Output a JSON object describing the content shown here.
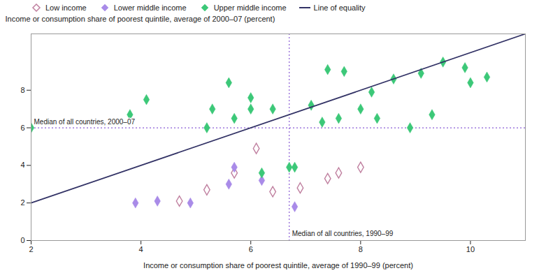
{
  "chart_data": {
    "type": "scatter",
    "xlabel": "Income or consumption share of poorest quintile, average of 1990–99 (percent)",
    "ylabel": "Income or consumption share of poorest quintile, average of 2000–07 (percent)",
    "xlim": [
      2,
      11
    ],
    "xticks": [
      2,
      4,
      6,
      8,
      10
    ],
    "ylim": [
      0,
      11
    ],
    "yticks": [
      0,
      2,
      4,
      6,
      8
    ],
    "grid": false,
    "legend": "top",
    "series": [
      {
        "name": "Low income",
        "color": "#c080a0",
        "marker": "diamond-open",
        "x": [
          4.7,
          5.2,
          5.7,
          6.4,
          6.9,
          7.4,
          7.6,
          8.0,
          6.1
        ],
        "values": [
          2.1,
          2.7,
          3.6,
          2.6,
          2.8,
          3.3,
          3.6,
          3.9,
          4.9
        ]
      },
      {
        "name": "Lower middle income",
        "color": "#a98be8",
        "marker": "diamond",
        "x": [
          3.9,
          4.3,
          4.9,
          5.6,
          5.7,
          6.2,
          6.8
        ],
        "values": [
          2.0,
          2.1,
          2.0,
          3.0,
          3.9,
          3.2,
          1.8
        ]
      },
      {
        "name": "Upper middle income",
        "color": "#3cc878",
        "marker": "diamond",
        "x": [
          2.0,
          3.8,
          4.1,
          5.2,
          5.3,
          5.6,
          6.0,
          6.0,
          6.4,
          7.1,
          7.3,
          7.4,
          7.7,
          8.0,
          8.3,
          8.9,
          9.3,
          9.5,
          10.0,
          10.3,
          9.1,
          6.7,
          5.7,
          6.2,
          6.8,
          7.6,
          8.2,
          8.6,
          9.9
        ],
        "values": [
          6.0,
          6.7,
          7.5,
          6.0,
          7.0,
          8.4,
          7.0,
          7.6,
          7.0,
          7.2,
          6.3,
          9.1,
          9.0,
          7.0,
          6.5,
          6.0,
          6.7,
          9.5,
          8.4,
          8.7,
          8.9,
          3.9,
          6.5,
          3.6,
          3.9,
          6.5,
          7.9,
          8.6,
          9.2
        ]
      },
      {
        "name": "Line of equality",
        "type": "line",
        "color": "#333366",
        "line_style": "solid",
        "x": [
          2,
          11
        ],
        "values": [
          2,
          11
        ]
      }
    ],
    "annotations": [
      {
        "text": "Median of all countries, 2000–07",
        "axis": "y",
        "value": 6.0,
        "color": "#8a5cd6"
      },
      {
        "text": "Median of all countries, 1990–99",
        "axis": "x",
        "value": 6.7,
        "color": "#8a5cd6"
      }
    ]
  }
}
